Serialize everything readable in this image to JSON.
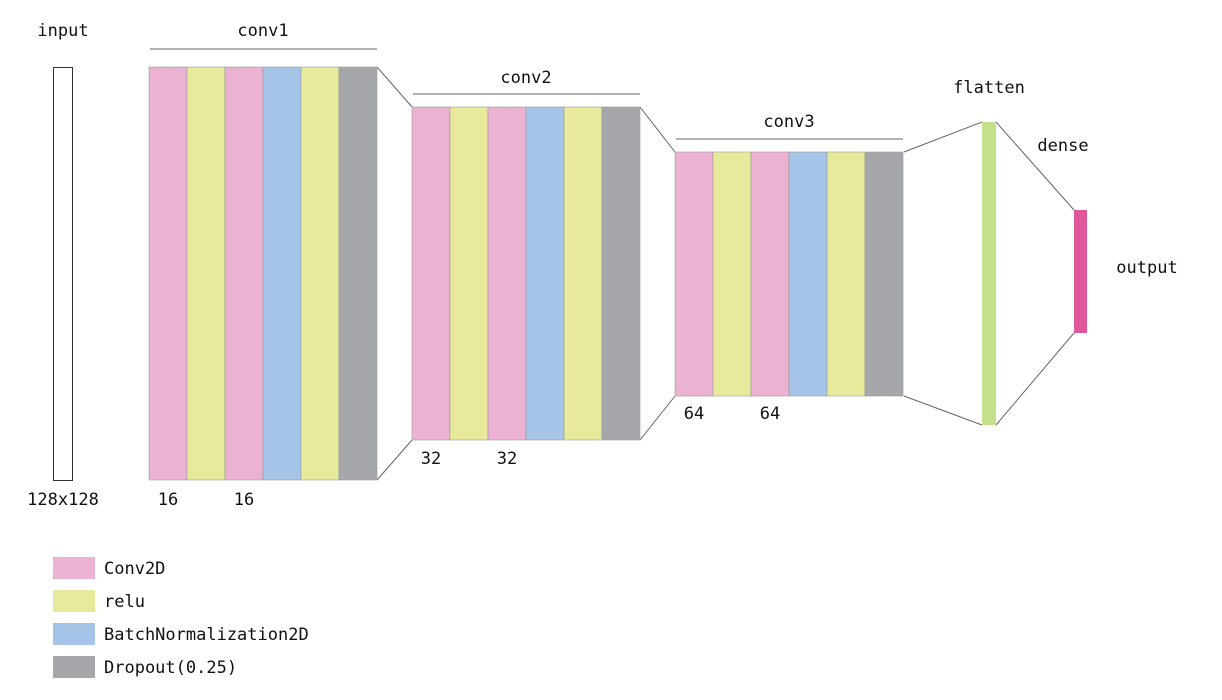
{
  "input": {
    "title": "input",
    "size": "128x128"
  },
  "blocks": [
    {
      "title": "conv1",
      "channel_labels": [
        "16",
        "16"
      ]
    },
    {
      "title": "conv2",
      "channel_labels": [
        "32",
        "32"
      ]
    },
    {
      "title": "conv3",
      "channel_labels": [
        "64",
        "64"
      ]
    }
  ],
  "flatten": {
    "title": "flatten",
    "color": "#c5e08a"
  },
  "dense": {
    "title": "dense"
  },
  "output": {
    "title": "output",
    "color": "#e0589b"
  },
  "legend": [
    {
      "label": "Conv2D",
      "color": "#ebb2d2"
    },
    {
      "label": "relu",
      "color": "#e7ea9b"
    },
    {
      "label": "BatchNormalization2D",
      "color": "#a6c4e8"
    },
    {
      "label": "Dropout(0.25)",
      "color": "#a6a7ab"
    }
  ]
}
